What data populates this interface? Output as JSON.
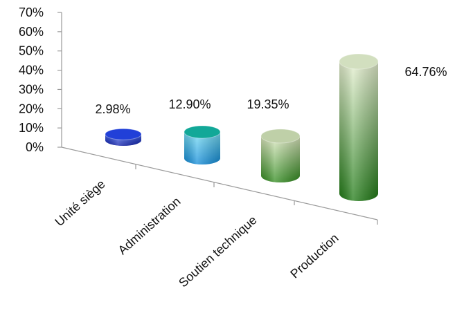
{
  "chart_data": {
    "type": "bar",
    "style": "3d-cylinder",
    "categories": [
      "Unité siège",
      "Administration",
      "Soutien technique",
      "Production"
    ],
    "values": [
      2.98,
      12.9,
      19.35,
      64.76
    ],
    "value_labels": [
      "2.98%",
      "12.90%",
      "19.35%",
      "64.76%"
    ],
    "y_ticks": [
      "0%",
      "10%",
      "20%",
      "30%",
      "40%",
      "50%",
      "60%",
      "70%"
    ],
    "ylim": [
      0,
      70
    ],
    "title": "",
    "xlabel": "",
    "ylabel": "",
    "grid": false,
    "legend": "none",
    "colors": [
      {
        "light": "#4a6cf0",
        "dark": "#0a1aa8",
        "top": "#2140d8"
      },
      {
        "light": "#7ce0f5",
        "dark": "#0f8ad8",
        "top": "#12a898"
      },
      {
        "light": "#dfe9c2",
        "dark": "#2f8a1c",
        "top": "#bfd0a8"
      },
      {
        "light": "#e8f1d2",
        "dark": "#1f7a14",
        "top": "#d2dfbf"
      }
    ]
  }
}
